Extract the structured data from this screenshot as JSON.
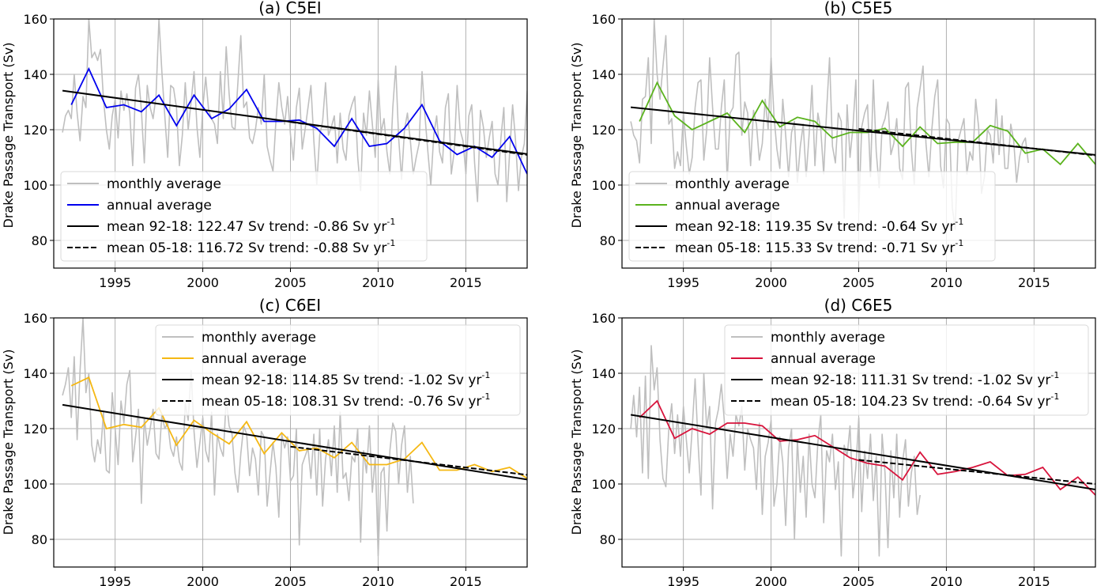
{
  "figure": {
    "ylabel": "Drake Passage Transport (Sv)"
  },
  "chart_data": [
    {
      "type": "line",
      "title": "(a) C5EI",
      "xlabel": "",
      "ylabel": "Drake Passage Transport (Sv)",
      "xlim": [
        1991.5,
        2018.5
      ],
      "ylim": [
        70,
        160
      ],
      "xticks": [
        "1995",
        "2000",
        "2005",
        "2010",
        "2015"
      ],
      "yticks": [
        "80",
        "100",
        "120",
        "140",
        "160"
      ],
      "grid": true,
      "legend_position": "lower-left",
      "colors": {
        "monthly": "#bfbfbf",
        "annual": "#0000ee",
        "trend": "#000000"
      },
      "legend": [
        {
          "label": "monthly average",
          "style": "monthly"
        },
        {
          "label": "annual average",
          "style": "annual"
        },
        {
          "label": "mean 92-18: 122.47 Sv trend: -0.86 Sv yr",
          "sup": "-1",
          "style": "solid"
        },
        {
          "label": "mean 05-18: 116.72 Sv trend: -0.88 Sv yr",
          "sup": "-1",
          "style": "dashed"
        }
      ],
      "annual": {
        "x": [
          1992.5,
          1993.5,
          1994.5,
          1995.5,
          1996.5,
          1997.5,
          1998.5,
          1999.5,
          2000.5,
          2001.5,
          2002.5,
          2003.5,
          2004.5,
          2005.5,
          2006.5,
          2007.5,
          2008.5,
          2009.5,
          2010.5,
          2011.5,
          2012.5,
          2013.5,
          2014.5,
          2015.5,
          2016.5,
          2017.5,
          2018.5
        ],
        "y": [
          129,
          142,
          128,
          129,
          126.5,
          132.5,
          121.5,
          132.5,
          124,
          127.5,
          134.5,
          123,
          123,
          123.5,
          120.5,
          114,
          124,
          114,
          115,
          120.5,
          129,
          116,
          111,
          114,
          110,
          117.5,
          104
        ]
      },
      "monthly": {
        "x_start": 1992.0,
        "x_step": 0.1667,
        "y": [
          119,
          125,
          127,
          124,
          140,
          126,
          116,
          132,
          128,
          160,
          146,
          148,
          145,
          149,
          131,
          120,
          113,
          125,
          131,
          117,
          134,
          127,
          133,
          126,
          107,
          135,
          140,
          127,
          108,
          136,
          128,
          124,
          132,
          160,
          141,
          125,
          110,
          136,
          135,
          128,
          107,
          118,
          137,
          120,
          130,
          141,
          121,
          110,
          128,
          139,
          127,
          124,
          122,
          115,
          141,
          124,
          150,
          133,
          121,
          120,
          137,
          154,
          128,
          130,
          117,
          115,
          120,
          128,
          122,
          140,
          114,
          109,
          105,
          123,
          137,
          128,
          122,
          132,
          118,
          109,
          128,
          135,
          113,
          120,
          128,
          136,
          116,
          100,
          118,
          123,
          137,
          118,
          121,
          125,
          108,
          126,
          113,
          109,
          125,
          129,
          132,
          110,
          98,
          126,
          118,
          134,
          122,
          110,
          138,
          119,
          124,
          112,
          104,
          128,
          143,
          117,
          102,
          120,
          126,
          116,
          104,
          110,
          115,
          141,
          125,
          112,
          100,
          118,
          125,
          112,
          108,
          128,
          133,
          104,
          112,
          136,
          120,
          116,
          104,
          125,
          129,
          108,
          94,
          127,
          121,
          110,
          117,
          123,
          104,
          100,
          117,
          128,
          94,
          112,
          129,
          116,
          98,
          110,
          115,
          134,
          131,
          108,
          100
        ]
      },
      "trend_full": {
        "x": [
          1992.0,
          2018.5
        ],
        "y": [
          134.1,
          111.2
        ]
      },
      "trend_recent": {
        "x": [
          2005.0,
          2018.5
        ],
        "y": [
          122.8,
          110.9
        ]
      }
    },
    {
      "type": "line",
      "title": "(b) C5E5",
      "xlabel": "",
      "ylabel": "Drake Passage Transport (Sv)",
      "xlim": [
        1991.5,
        2018.5
      ],
      "ylim": [
        70,
        160
      ],
      "xticks": [
        "1995",
        "2000",
        "2005",
        "2010",
        "2015"
      ],
      "yticks": [
        "80",
        "100",
        "120",
        "140",
        "160"
      ],
      "grid": true,
      "legend_position": "lower-left",
      "colors": {
        "monthly": "#bfbfbf",
        "annual": "#5bb31e",
        "trend": "#000000"
      },
      "legend": [
        {
          "label": "monthly average",
          "style": "monthly"
        },
        {
          "label": "annual average",
          "style": "annual"
        },
        {
          "label": "mean 92-18: 119.35 Sv trend: -0.64 Sv yr",
          "sup": "-1",
          "style": "solid"
        },
        {
          "label": "mean 05-18: 115.33 Sv trend: -0.71 Sv yr",
          "sup": "-1",
          "style": "dashed"
        }
      ],
      "annual": {
        "x": [
          1992.5,
          1993.5,
          1994.5,
          1995.5,
          1996.5,
          1997.5,
          1998.5,
          1999.5,
          2000.5,
          2001.5,
          2002.5,
          2003.5,
          2004.5,
          2005.5,
          2006.5,
          2007.5,
          2008.5,
          2009.5,
          2010.5,
          2011.5,
          2012.5,
          2013.5,
          2014.5,
          2015.5,
          2016.5,
          2017.5,
          2018.5
        ],
        "y": [
          123,
          137,
          125,
          120,
          123,
          126,
          119,
          130.5,
          121,
          124.5,
          123,
          117,
          119,
          119,
          120.5,
          114,
          121,
          115,
          115.5,
          115.5,
          121.5,
          119.5,
          111.5,
          113,
          107.5,
          115,
          107.5
        ]
      },
      "monthly": {
        "x_start": 1992.0,
        "x_step": 0.1667,
        "y": [
          123,
          118,
          116,
          108,
          131,
          132,
          146,
          115,
          160,
          140,
          131,
          143,
          154,
          122,
          124,
          106,
          112,
          107,
          126,
          114,
          104,
          110,
          128,
          137,
          138,
          109,
          120,
          146,
          128,
          113,
          113,
          128,
          138,
          101,
          126,
          128,
          147,
          148,
          118,
          130,
          126,
          107,
          127,
          122,
          109,
          115,
          131,
          120,
          146,
          125,
          113,
          106,
          131,
          118,
          103,
          119,
          123,
          101,
          114,
          122,
          103,
          118,
          136,
          107,
          126,
          120,
          104,
          127,
          146,
          114,
          108,
          126,
          123,
          88,
          129,
          110,
          121,
          138,
          90,
          121,
          126,
          129,
          103,
          138,
          112,
          99,
          121,
          124,
          130,
          111,
          115,
          124,
          106,
          102,
          135,
          137,
          113,
          100,
          128,
          135,
          143,
          115,
          103,
          120,
          132,
          138,
          107,
          99,
          124,
          122,
          92,
          84,
          116,
          120,
          124,
          104,
          112,
          109,
          131,
          121,
          97,
          103,
          120,
          118,
          108,
          131,
          111,
          125,
          106,
          106,
          122,
          116,
          101,
          110,
          115,
          117,
          108
        ]
      },
      "trend_full": {
        "x": [
          1992.0,
          2018.5
        ],
        "y": [
          128.1,
          110.9
        ]
      },
      "trend_recent": {
        "x": [
          2005.0,
          2018.5
        ],
        "y": [
          120.3,
          110.7
        ]
      }
    },
    {
      "type": "line",
      "title": "(c) C6EI",
      "xlabel": "",
      "ylabel": "Drake Passage Transport (Sv)",
      "xlim": [
        1991.5,
        2018.5
      ],
      "ylim": [
        70,
        160
      ],
      "xticks": [
        "1995",
        "2000",
        "2005",
        "2010",
        "2015"
      ],
      "yticks": [
        "80",
        "100",
        "120",
        "140",
        "160"
      ],
      "grid": true,
      "legend_position": "upper-right",
      "colors": {
        "monthly": "#bfbfbf",
        "annual": "#f5b814",
        "trend": "#000000"
      },
      "legend": [
        {
          "label": "monthly average",
          "style": "monthly"
        },
        {
          "label": "annual average",
          "style": "annual"
        },
        {
          "label": "mean 92-18: 114.85 Sv trend: -1.02 Sv yr",
          "sup": "-1",
          "style": "solid"
        },
        {
          "label": "mean 05-18: 108.31 Sv trend: -0.76 Sv yr",
          "sup": "-1",
          "style": "dashed"
        }
      ],
      "annual": {
        "x": [
          1992.5,
          1993.5,
          1994.5,
          1995.5,
          1996.5,
          1997.5,
          1998.5,
          1999.5,
          2000.5,
          2001.5,
          2002.5,
          2003.5,
          2004.5,
          2005.5,
          2006.5,
          2007.5,
          2008.5,
          2009.5,
          2010.5,
          2011.5,
          2012.5,
          2013.5,
          2014.5,
          2015.5,
          2016.5,
          2017.5,
          2018.5
        ],
        "y": [
          135.5,
          138.5,
          120,
          121.5,
          120.5,
          127.5,
          114,
          123,
          118.5,
          114.5,
          122.5,
          111,
          118.5,
          112,
          113,
          109.5,
          115,
          107,
          107,
          109,
          115,
          105,
          105,
          107,
          104.5,
          106,
          102
        ]
      },
      "monthly": {
        "x_start": 1992.0,
        "x_step": 0.1667,
        "y": [
          132,
          136,
          142,
          124,
          146,
          116,
          141,
          160,
          133,
          140,
          114,
          108,
          116,
          111,
          126,
          105,
          104,
          133,
          120,
          107,
          130,
          122,
          136,
          141,
          108,
          117,
          127,
          93,
          124,
          114,
          120,
          127,
          111,
          109,
          125,
          120,
          122,
          113,
          110,
          117,
          108,
          105,
          129,
          123,
          141,
          119,
          106,
          115,
          124,
          112,
          108,
          126,
          96,
          118,
          113,
          110,
          131,
          121,
          118,
          104,
          97,
          111,
          121,
          118,
          103,
          113,
          109,
          96,
          119,
          117,
          92,
          104,
          115,
          106,
          88,
          118,
          113,
          117,
          101,
          103,
          120,
          78,
          107,
          110,
          113,
          102,
          118,
          96,
          120,
          92,
          109,
          116,
          103,
          121,
          97,
          126,
          102,
          104,
          94,
          110,
          108,
          120,
          79,
          112,
          104,
          121,
          97,
          110,
          74,
          104,
          106,
          83,
          112,
          122,
          119,
          100,
          114,
          121,
          97,
          110,
          93
        ]
      },
      "trend_full": {
        "x": [
          1992.0,
          2018.5
        ],
        "y": [
          128.6,
          101.6
        ]
      },
      "trend_recent": {
        "x": [
          2005.0,
          2018.5
        ],
        "y": [
          113.5,
          103.3
        ]
      }
    },
    {
      "type": "line",
      "title": "(d) C6E5",
      "xlabel": "",
      "ylabel": "Drake Passage Transport (Sv)",
      "xlim": [
        1991.5,
        2018.5
      ],
      "ylim": [
        70,
        160
      ],
      "xticks": [
        "1995",
        "2000",
        "2005",
        "2010",
        "2015"
      ],
      "yticks": [
        "80",
        "100",
        "120",
        "140",
        "160"
      ],
      "grid": true,
      "legend_position": "upper-right",
      "colors": {
        "monthly": "#bfbfbf",
        "annual": "#d8143c",
        "trend": "#000000"
      },
      "legend": [
        {
          "label": "monthly average",
          "style": "monthly"
        },
        {
          "label": "annual average",
          "style": "annual"
        },
        {
          "label": "mean 92-18: 111.31 Sv trend: -1.02 Sv yr",
          "sup": "-1",
          "style": "solid"
        },
        {
          "label": "mean 05-18: 104.23 Sv trend: -0.64 Sv yr",
          "sup": "-1",
          "style": "dashed"
        }
      ],
      "annual": {
        "x": [
          1992.5,
          1993.5,
          1994.5,
          1995.5,
          1996.5,
          1997.5,
          1998.5,
          1999.5,
          2000.5,
          2001.5,
          2002.5,
          2003.5,
          2004.5,
          2005.5,
          2006.5,
          2007.5,
          2008.5,
          2009.5,
          2010.5,
          2011.5,
          2012.5,
          2013.5,
          2014.5,
          2015.5,
          2016.5,
          2017.5,
          2018.5
        ],
        "y": [
          124,
          130,
          116.5,
          120,
          118,
          122,
          122,
          121,
          115.5,
          116,
          117.5,
          113.5,
          109.5,
          107.5,
          106.5,
          101.5,
          111.5,
          103.5,
          104.5,
          106,
          108,
          103,
          103.5,
          106,
          98,
          102.5,
          96
        ]
      },
      "monthly": {
        "x_start": 1992.0,
        "x_step": 0.1667,
        "y": [
          120,
          132,
          117,
          135,
          104,
          139,
          102,
          150,
          134,
          142,
          116,
          102,
          99,
          120,
          129,
          111,
          125,
          110,
          128,
          116,
          104,
          120,
          138,
          115,
          96,
          140,
          120,
          128,
          91,
          122,
          127,
          136,
          123,
          102,
          118,
          110,
          125,
          121,
          128,
          105,
          120,
          116,
          113,
          98,
          122,
          89,
          110,
          115,
          123,
          92,
          100,
          117,
          108,
          85,
          113,
          120,
          80,
          116,
          97,
          110,
          88,
          118,
          100,
          95,
          115,
          125,
          86,
          112,
          108,
          118,
          98,
          108,
          74,
          114,
          110,
          121,
          95,
          106,
          124,
          90,
          112,
          102,
          118,
          94,
          110,
          74,
          118,
          104,
          77,
          112,
          95,
          118,
          88,
          108,
          116,
          92,
          104,
          110,
          89,
          96
        ]
      },
      "trend_full": {
        "x": [
          1992.0,
          2018.5
        ],
        "y": [
          125.0,
          98.0
        ]
      },
      "trend_recent": {
        "x": [
          2005.0,
          2018.5
        ],
        "y": [
          108.7,
          100.0
        ]
      }
    }
  ]
}
